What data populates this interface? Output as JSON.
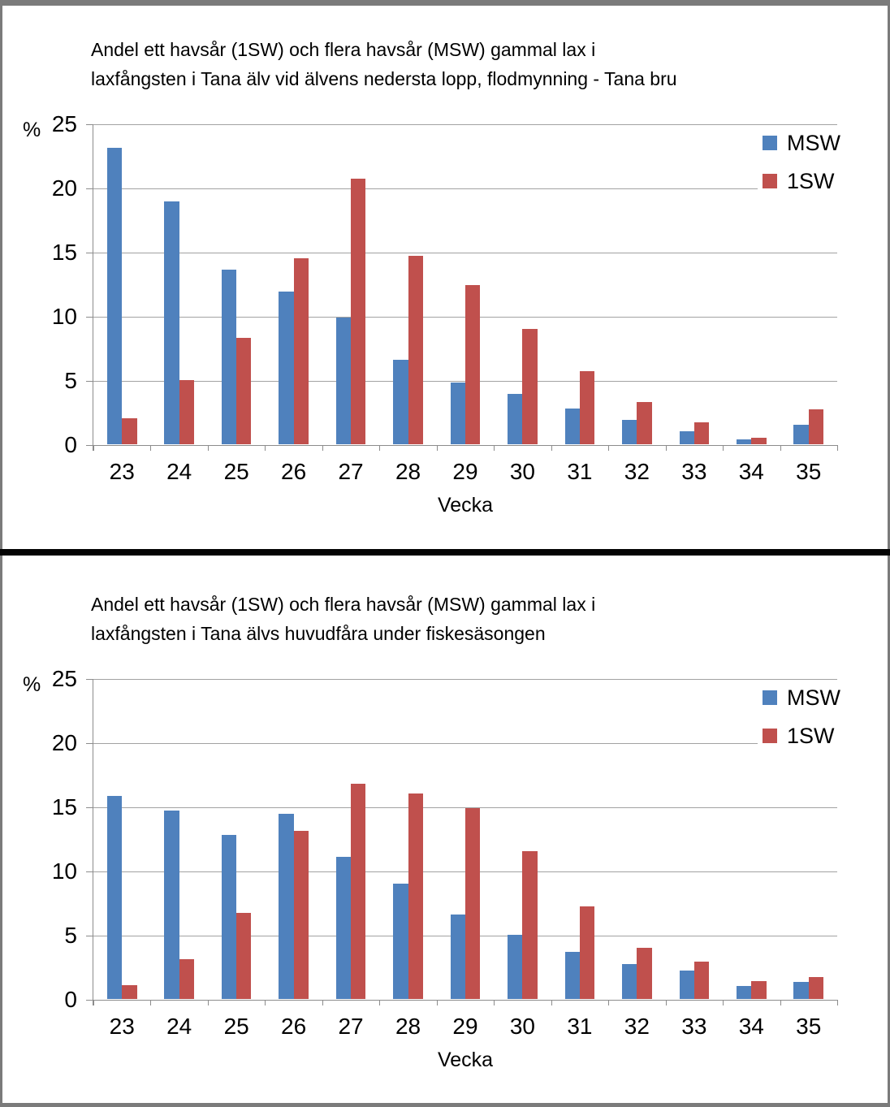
{
  "page": {
    "border_color": "#7b7b7b",
    "divider_color": "#040404",
    "panel_background": "#ffffff"
  },
  "chart_data": [
    {
      "type": "bar",
      "title_line1": "Andel ett havsår (1SW) och flera havsår (MSW) gammal lax i",
      "title_line2": "laxfångsten i Tana älv vid älvens nedersta lopp, flodmynning - Tana bru",
      "ylabel": "%",
      "xlabel": "Vecka",
      "ylim": [
        0,
        25
      ],
      "yticks": [
        0,
        5,
        10,
        15,
        20,
        25
      ],
      "grid": true,
      "legend_position": "top-right",
      "categories": [
        23,
        24,
        25,
        26,
        27,
        28,
        29,
        30,
        31,
        32,
        33,
        34,
        35
      ],
      "series": [
        {
          "name": "MSW",
          "color": "#4f81bd",
          "values": [
            23.1,
            18.9,
            13.6,
            11.9,
            9.9,
            6.6,
            4.8,
            3.9,
            2.8,
            1.9,
            1.0,
            0.4,
            1.5
          ]
        },
        {
          "name": "1SW",
          "color": "#c0504d",
          "values": [
            2.0,
            5.0,
            8.3,
            14.5,
            20.7,
            14.7,
            12.4,
            9.0,
            5.7,
            3.3,
            1.7,
            0.5,
            2.7
          ]
        }
      ]
    },
    {
      "type": "bar",
      "title_line1": "Andel ett havsår (1SW) och flera havsår (MSW) gammal lax i",
      "title_line2": "laxfångsten i Tana älvs huvudfåra under fiskesäsongen",
      "ylabel": "%",
      "xlabel": "Vecka",
      "ylim": [
        0,
        25
      ],
      "yticks": [
        0,
        5,
        10,
        15,
        20,
        25
      ],
      "grid": true,
      "legend_position": "top-right",
      "categories": [
        23,
        24,
        25,
        26,
        27,
        28,
        29,
        30,
        31,
        32,
        33,
        34,
        35
      ],
      "series": [
        {
          "name": "MSW",
          "color": "#4f81bd",
          "values": [
            15.8,
            14.7,
            12.8,
            14.4,
            11.1,
            9.0,
            6.6,
            5.0,
            3.7,
            2.7,
            2.2,
            1.0,
            1.3
          ]
        },
        {
          "name": "1SW",
          "color": "#c0504d",
          "values": [
            1.1,
            3.1,
            6.7,
            13.1,
            16.8,
            16.0,
            14.9,
            11.5,
            7.2,
            4.0,
            2.9,
            1.4,
            1.7
          ]
        }
      ]
    }
  ]
}
